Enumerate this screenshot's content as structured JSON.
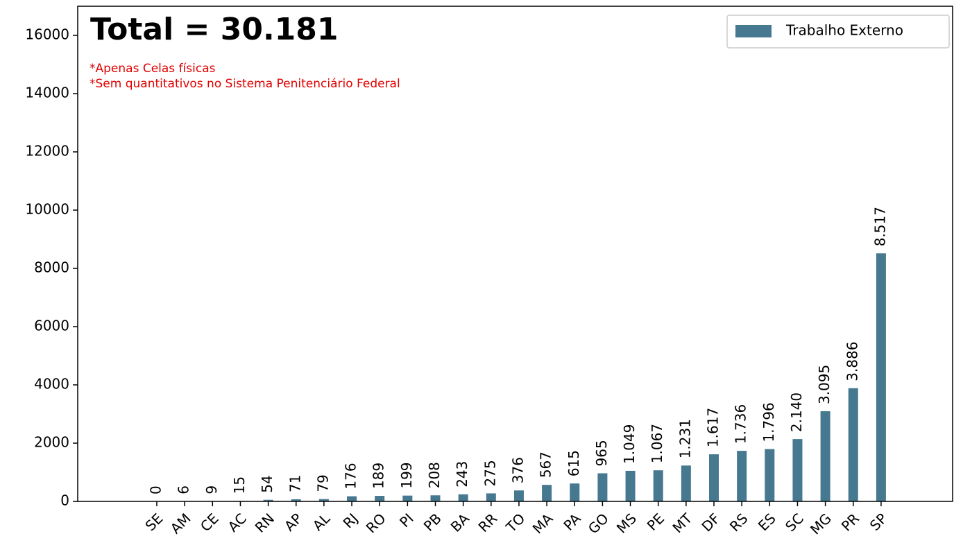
{
  "chart_data": {
    "type": "bar",
    "title": "Total = 30.181",
    "annotations": [
      "*Apenas Celas físicas",
      "*Sem quantitativos no Sistema Penitenciário Federal"
    ],
    "categories": [
      "SE",
      "AM",
      "CE",
      "AC",
      "RN",
      "AP",
      "AL",
      "RJ",
      "RO",
      "PI",
      "PB",
      "BA",
      "RR",
      "TO",
      "MA",
      "PA",
      "GO",
      "MS",
      "PE",
      "MT",
      "DF",
      "RS",
      "ES",
      "SC",
      "MG",
      "PR",
      "SP"
    ],
    "series": [
      {
        "name": "Trabalho Externo",
        "color": "#467890",
        "values": [
          0,
          6,
          9,
          15,
          54,
          71,
          79,
          176,
          189,
          199,
          208,
          243,
          275,
          376,
          567,
          615,
          965,
          1049,
          1067,
          1231,
          1617,
          1736,
          1796,
          2140,
          3095,
          3886,
          8517
        ],
        "value_labels": [
          "0",
          "6",
          "9",
          "15",
          "54",
          "71",
          "79",
          "176",
          "189",
          "199",
          "208",
          "243",
          "275",
          "376",
          "567",
          "615",
          "965",
          "1.049",
          "1.067",
          "1.231",
          "1.617",
          "1.736",
          "1.796",
          "2.140",
          "3.095",
          "3.886",
          "8.517"
        ]
      }
    ],
    "ylim": [
      0,
      17000
    ],
    "yticks": [
      0,
      2000,
      4000,
      6000,
      8000,
      10000,
      12000,
      14000,
      16000
    ],
    "legend": "upper right"
  }
}
